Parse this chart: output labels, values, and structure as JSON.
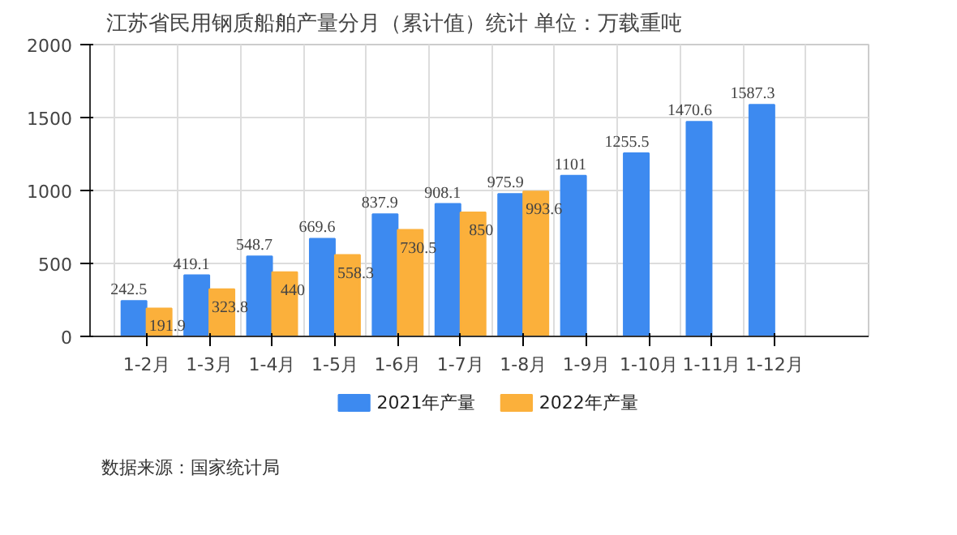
{
  "chart_data": {
    "type": "bar",
    "title": "江苏省民用钢质船舶产量分月（累计值）统计 单位：万载重吨",
    "categories": [
      "1-2月",
      "1-3月",
      "1-4月",
      "1-5月",
      "1-6月",
      "1-7月",
      "1-8月",
      "1-9月",
      "1-10月",
      "1-11月",
      "1-12月"
    ],
    "series": [
      {
        "name": "2021年产量",
        "color": "#3d8af0",
        "values": [
          242.5,
          419.1,
          548.7,
          669.6,
          837.9,
          908.1,
          975.9,
          1101,
          1255.5,
          1470.6,
          1587.3
        ]
      },
      {
        "name": "2022年产量",
        "color": "#fbb03b",
        "values": [
          191.9,
          323.8,
          440,
          558.3,
          730.5,
          850,
          993.6,
          null,
          null,
          null,
          null
        ]
      }
    ],
    "ylim": [
      0,
      2000
    ],
    "yticks": [
      0,
      500,
      1000,
      1500,
      2000
    ],
    "grid": true,
    "legend": "bottom",
    "data_labels": true,
    "annotations": [
      "数据来源：国家统计局"
    ]
  }
}
